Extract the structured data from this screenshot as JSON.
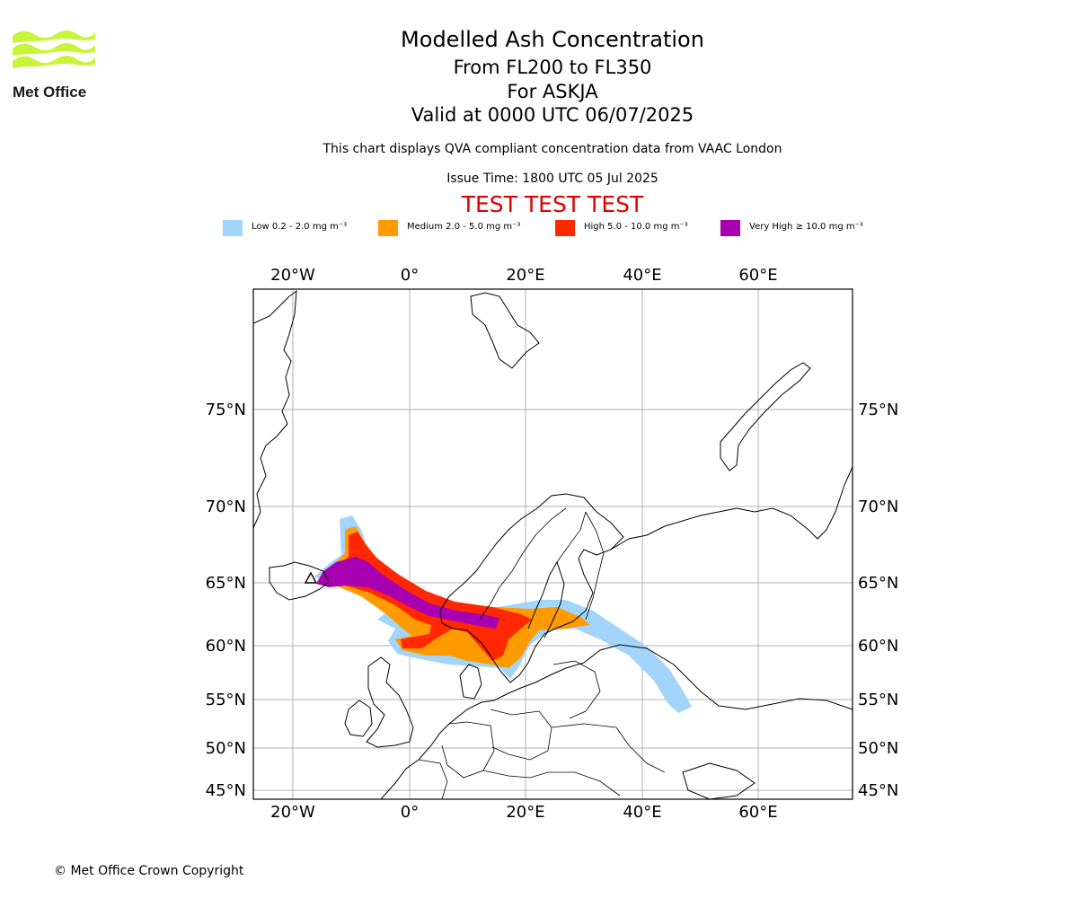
{
  "brand": {
    "name": "Met Office",
    "logo_color": "#c8f53a"
  },
  "titles": {
    "main": "Modelled Ash Concentration",
    "levels": "From FL200 to FL350",
    "volcano": "For ASKJA",
    "valid": "Valid at 0000 UTC 06/07/2025",
    "description": "This chart displays QVA compliant concentration data from VAAC London",
    "issue_time": "Issue Time: 1800 UTC 05 Jul 2025",
    "test_banner": "TEST TEST TEST"
  },
  "legend": [
    {
      "label": "Low 0.2 - 2.0 mg m⁻³",
      "color": "#a3d4fa"
    },
    {
      "label": "Medium 2.0 - 5.0 mg m⁻³",
      "color": "#ff9a00"
    },
    {
      "label": "High 5.0 - 10.0 mg m⁻³",
      "color": "#ff2800"
    },
    {
      "label": "Very High  ≥  10.0 mg m⁻³",
      "color": "#a800b0"
    }
  ],
  "map": {
    "lon_ticks": [
      "20°W",
      "0°",
      "20°E",
      "40°E",
      "60°E"
    ],
    "lat_ticks": [
      "75°N",
      "70°N",
      "65°N",
      "60°N",
      "55°N",
      "50°N",
      "45°N"
    ],
    "gridlines": true,
    "extent": {
      "lon": [
        -27,
        76
      ],
      "lat": [
        44.5,
        81
      ]
    }
  },
  "footer": {
    "copyright": "© Met Office Crown Copyright"
  }
}
